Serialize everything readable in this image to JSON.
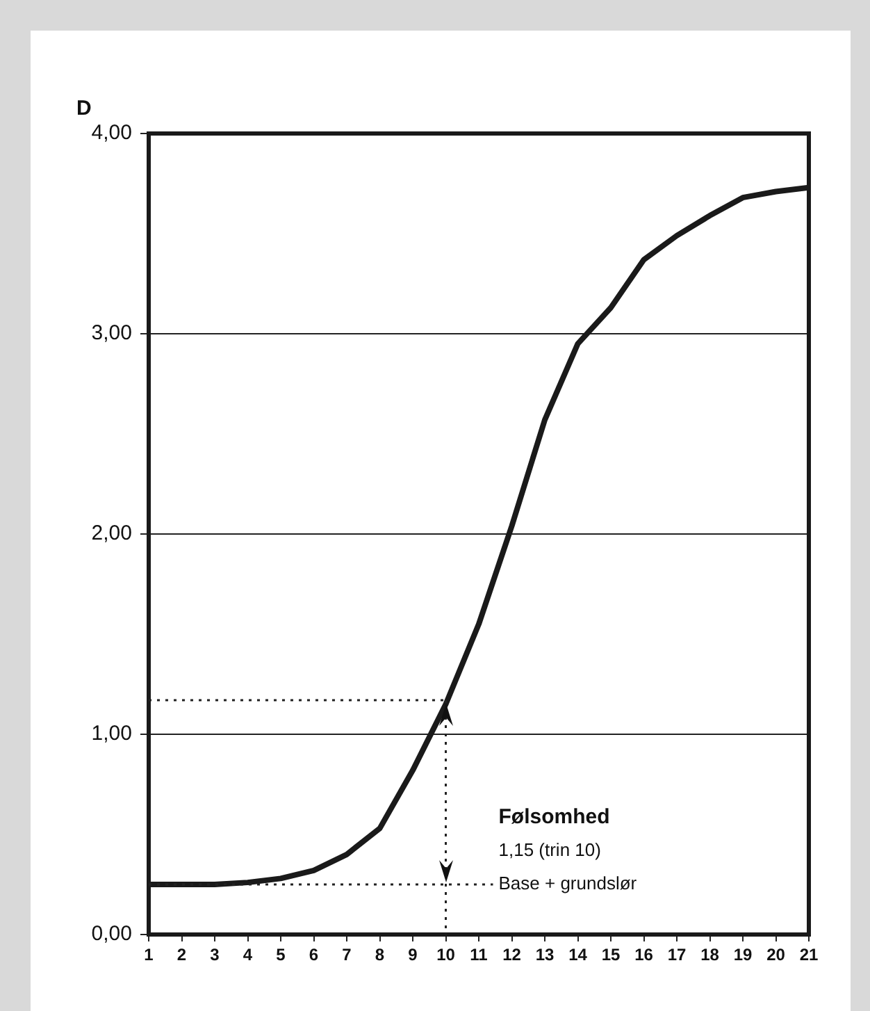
{
  "chart_data": {
    "type": "line",
    "ylabel": "D",
    "x": [
      1,
      2,
      3,
      4,
      5,
      6,
      7,
      8,
      9,
      10,
      11,
      12,
      13,
      14,
      15,
      16,
      17,
      18,
      19,
      20,
      21
    ],
    "series": [
      {
        "color": "#1a1a1a",
        "values": [
          0.25,
          0.25,
          0.25,
          0.26,
          0.28,
          0.32,
          0.4,
          0.53,
          0.82,
          1.15,
          1.55,
          2.04,
          2.57,
          2.95,
          3.13,
          3.37,
          3.49,
          3.59,
          3.68,
          3.71,
          3.73
        ]
      }
    ],
    "xlim": [
      1,
      21
    ],
    "xticks": [
      1,
      2,
      3,
      4,
      5,
      6,
      7,
      8,
      9,
      10,
      11,
      12,
      13,
      14,
      15,
      16,
      17,
      18,
      19,
      20,
      21
    ],
    "ylim": [
      0,
      4
    ],
    "yticks": [
      {
        "value": 0,
        "label": "0,00"
      },
      {
        "value": 1,
        "label": "1,00"
      },
      {
        "value": 2,
        "label": "2,00"
      },
      {
        "value": 3,
        "label": "3,00"
      },
      {
        "value": 4,
        "label": "4,00"
      }
    ],
    "grid": "y",
    "legend": false,
    "marker": "none",
    "line_style": "solid",
    "ref_lines": [
      {
        "axis": "x",
        "value": 10,
        "line_style": "dotted"
      },
      {
        "axis": "y",
        "value": 1.17,
        "line_style": "dotted"
      },
      {
        "axis": "y",
        "value": 0.25,
        "label": "Base + grundslør",
        "line_style": "dotted"
      }
    ],
    "annotations": [
      "Følsomhed",
      "1,15 (trin 10)"
    ]
  }
}
